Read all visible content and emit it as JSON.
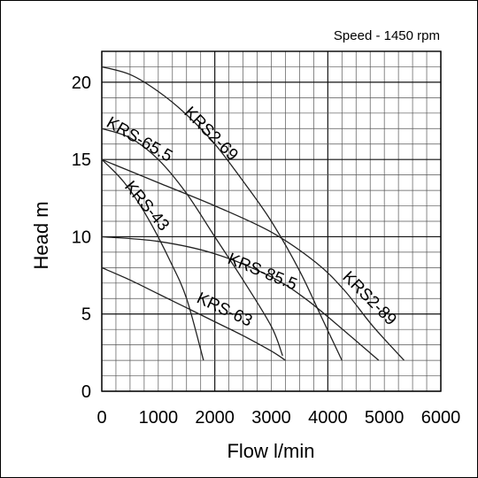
{
  "chart_data": {
    "type": "line",
    "subtitle": "Speed - 1450 rpm",
    "xlabel": "Flow l/min",
    "ylabel": "Head m",
    "xlim": [
      0,
      6000
    ],
    "ylim": [
      0,
      22
    ],
    "x_ticks": [
      0,
      1000,
      2000,
      3000,
      4000,
      5000,
      6000
    ],
    "y_ticks": [
      0,
      5,
      10,
      15,
      20
    ],
    "x_tick_labels": [
      "0",
      "1000",
      "2000",
      "3000",
      "4000",
      "5000",
      "6000"
    ],
    "y_tick_labels": [
      "0",
      "5",
      "10",
      "15",
      "20"
    ],
    "grid": true,
    "series": [
      {
        "name": "KRS2-69",
        "points": [
          [
            0,
            21
          ],
          [
            500,
            20.5
          ],
          [
            1000,
            19.4
          ],
          [
            1500,
            17.9
          ],
          [
            2000,
            16
          ],
          [
            2500,
            13.6
          ],
          [
            3000,
            11
          ],
          [
            3500,
            7.8
          ],
          [
            3900,
            4.7
          ],
          [
            4250,
            2
          ]
        ]
      },
      {
        "name": "KRS2-89",
        "points": [
          [
            0,
            15
          ],
          [
            1000,
            13.5
          ],
          [
            2000,
            12
          ],
          [
            3000,
            10.3
          ],
          [
            3800,
            8.3
          ],
          [
            4300,
            6.5
          ],
          [
            4800,
            4.2
          ],
          [
            5350,
            2
          ]
        ]
      },
      {
        "name": "KRS-65.5",
        "points": [
          [
            0,
            17
          ],
          [
            500,
            16.4
          ],
          [
            1000,
            15
          ],
          [
            1500,
            12.8
          ],
          [
            2000,
            10
          ],
          [
            2500,
            7.2
          ],
          [
            3000,
            4.2
          ],
          [
            3200,
            2.3
          ]
        ]
      },
      {
        "name": "KRS-43",
        "points": [
          [
            0,
            15
          ],
          [
            400,
            13.5
          ],
          [
            800,
            11.3
          ],
          [
            1200,
            8.5
          ],
          [
            1500,
            6
          ],
          [
            1800,
            2
          ]
        ]
      },
      {
        "name": "KRS-85.5",
        "points": [
          [
            0,
            10
          ],
          [
            1000,
            9.7
          ],
          [
            2000,
            8.9
          ],
          [
            3000,
            7.4
          ],
          [
            3600,
            6
          ],
          [
            4200,
            4.2
          ],
          [
            4900,
            2
          ]
        ]
      },
      {
        "name": "KRS-63",
        "points": [
          [
            0,
            8
          ],
          [
            500,
            7.2
          ],
          [
            1000,
            6.3
          ],
          [
            1500,
            5.4
          ],
          [
            2000,
            4.5
          ],
          [
            2500,
            3.6
          ],
          [
            3000,
            2.6
          ],
          [
            3250,
            2
          ]
        ]
      }
    ],
    "annotations": [
      "KRS2-69",
      "KRS2-89",
      "KRS-65.5",
      "KRS-43",
      "KRS-85.5",
      "KRS-63"
    ]
  }
}
